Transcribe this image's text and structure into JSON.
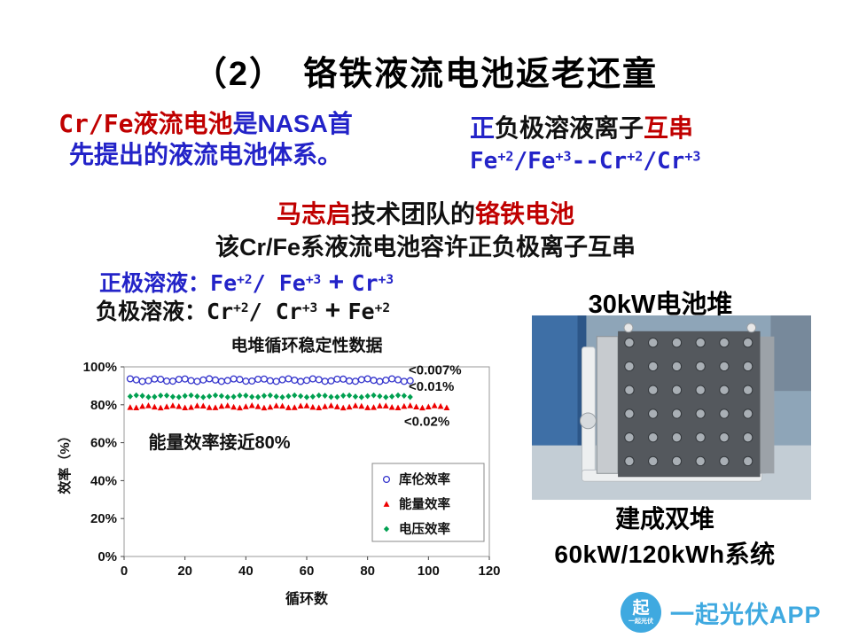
{
  "slide": {
    "title": "（2）　铬铁液流电池返老还童",
    "colors": {
      "blue": "#2323C8",
      "darkred": "#C00000",
      "black": "#111111",
      "logo_blue": "#3FA9E0"
    },
    "rich": {
      "left1": [
        {
          "t": "Cr/Fe液流电池",
          "c": "darkred",
          "mono": true
        },
        {
          "t": "是NASA首",
          "c": "blue"
        }
      ],
      "left2": [
        {
          "t": "先提出的液流电池体系。",
          "c": "blue"
        }
      ],
      "right1": [
        {
          "t": "正",
          "c": "blue"
        },
        {
          "t": "负极溶液离子",
          "c": "black"
        },
        {
          "t": "互串",
          "c": "darkred"
        }
      ],
      "right2": [
        {
          "t": "Fe",
          "c": "blue",
          "mono": true
        },
        {
          "t": "+2",
          "c": "blue",
          "mono": true,
          "sup": true
        },
        {
          "t": "/Fe",
          "c": "blue",
          "mono": true
        },
        {
          "t": "+3",
          "c": "blue",
          "mono": true,
          "sup": true
        },
        {
          "t": "--Cr",
          "c": "blue",
          "mono": true
        },
        {
          "t": "+2",
          "c": "blue",
          "mono": true,
          "sup": true
        },
        {
          "t": "/Cr",
          "c": "blue",
          "mono": true
        },
        {
          "t": "+3",
          "c": "blue",
          "mono": true,
          "sup": true
        }
      ],
      "team": [
        {
          "t": "马志启",
          "c": "darkred"
        },
        {
          "t": "技术团队的",
          "c": "black"
        },
        {
          "t": "铬铁电池",
          "c": "darkred"
        }
      ],
      "allow": [
        {
          "t": "该Cr/Fe系液流电池容许正负极离子互串",
          "c": "black"
        }
      ],
      "pos": [
        {
          "t": "正极溶液：",
          "c": "blue"
        },
        {
          "t": "Fe",
          "c": "blue",
          "mono": true
        },
        {
          "t": "+2",
          "c": "blue",
          "mono": true,
          "sup": true
        },
        {
          "t": "/ Fe",
          "c": "blue",
          "mono": true
        },
        {
          "t": "+3",
          "c": "blue",
          "mono": true,
          "sup": true
        },
        {
          "t": " + ",
          "c": "blue",
          "big": true
        },
        {
          "t": "Cr",
          "c": "blue",
          "mono": true
        },
        {
          "t": "+3",
          "c": "blue",
          "mono": true,
          "sup": true
        }
      ],
      "neg": [
        {
          "t": "负极溶液：",
          "c": "black"
        },
        {
          "t": "Cr",
          "c": "black",
          "mono": true
        },
        {
          "t": "+2",
          "c": "black",
          "mono": true,
          "sup": true
        },
        {
          "t": "/ Cr",
          "c": "black",
          "mono": true
        },
        {
          "t": "+3",
          "c": "black",
          "mono": true,
          "sup": true
        },
        {
          "t": " + ",
          "c": "black",
          "big": true
        },
        {
          "t": "Fe",
          "c": "black",
          "mono": true
        },
        {
          "t": "+2",
          "c": "black",
          "mono": true,
          "sup": true
        }
      ]
    },
    "stack_label": "30kW电池堆",
    "built1": "建成双堆",
    "built2": "60kW/120kWh系统",
    "logo": {
      "badge": "起",
      "badge_caption": "一起光伏",
      "text": "一起光伏APP"
    }
  },
  "chart_data": {
    "type": "scatter",
    "title": "电堆循环稳定性数据",
    "xlabel": "循环数",
    "ylabel": "效率（%）",
    "xlim": [
      0,
      120
    ],
    "ylim": [
      0,
      100
    ],
    "x_ticks": [
      0,
      20,
      40,
      60,
      80,
      100,
      120
    ],
    "y_ticks_percent": [
      0,
      20,
      40,
      60,
      80,
      100
    ],
    "grid": false,
    "legend_position": "inside-bottom-right",
    "series": [
      {
        "name": "库伦效率",
        "marker": "open-circle",
        "color": "#3333CC",
        "x_start": 2,
        "x_end": 94,
        "x_step": 2,
        "y_mean": 93,
        "y_jitter": 0.7
      },
      {
        "name": "能量效率",
        "marker": "triangle",
        "color": "#EE0000",
        "x_start": 2,
        "x_end": 106,
        "x_step": 2,
        "y_mean": 79,
        "y_jitter": 0.6
      },
      {
        "name": "电压效率",
        "marker": "diamond",
        "color": "#00A050",
        "x_start": 2,
        "x_end": 94,
        "x_step": 2,
        "y_mean": 84.5,
        "y_jitter": 0.5
      }
    ],
    "annotations": [
      {
        "text": "<0.007%",
        "x": 93.5,
        "y": 96
      },
      {
        "text": "<0.01%",
        "x": 93.5,
        "y": 87.5
      },
      {
        "text": "<0.02%",
        "x": 92,
        "y": 69
      }
    ],
    "note": {
      "text": "能量效率接近80%",
      "x": 8,
      "y": 57
    }
  }
}
